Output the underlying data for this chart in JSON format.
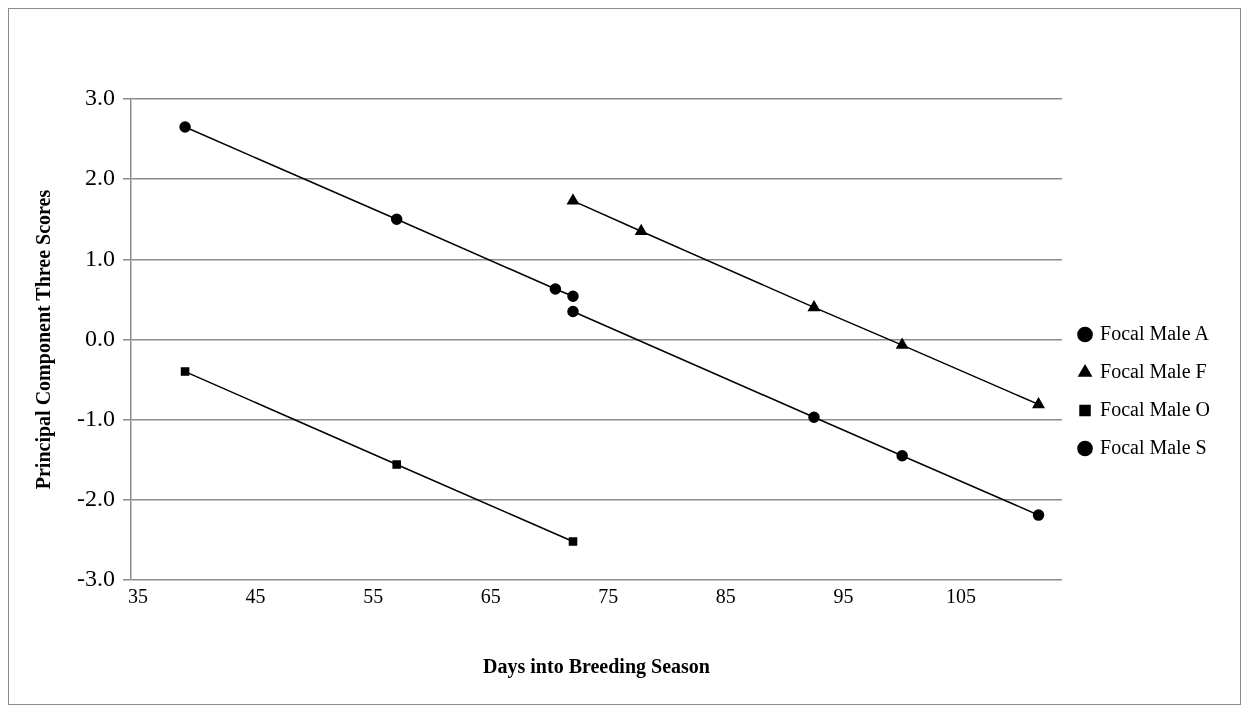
{
  "chart_data": {
    "type": "line",
    "xlabel": "Days into Breeding Season",
    "ylabel": "Principal Component Three Scores",
    "xlim": [
      34.4,
      113.6
    ],
    "xticks": [
      35,
      45,
      55,
      65,
      75,
      85,
      95,
      105
    ],
    "ylim": [
      -3,
      3
    ],
    "yticks": [
      {
        "value": -3,
        "label": "-3.0"
      },
      {
        "value": -2,
        "label": "-2.0"
      },
      {
        "value": -1,
        "label": "-1.0"
      },
      {
        "value": 0,
        "label": "0.0"
      },
      {
        "value": 1,
        "label": "1.0"
      },
      {
        "value": 2,
        "label": "2.0"
      },
      {
        "value": 3,
        "label": "3.0"
      }
    ],
    "grid": "y",
    "legend": "right",
    "line_style": "solid",
    "series": [
      {
        "name": "Focal Male A",
        "color": "#000000",
        "marker": "circle",
        "x": [
          72,
          92.5,
          100,
          111.6
        ],
        "values": [
          0.35,
          -0.97,
          -1.45,
          -2.19
        ]
      },
      {
        "name": "Focal Male F",
        "color": "#000000",
        "marker": "triangle",
        "x": [
          72,
          77.8,
          92.5,
          100,
          111.6
        ],
        "values": [
          1.73,
          1.35,
          0.4,
          -0.07,
          -0.81
        ]
      },
      {
        "name": "Focal Male O",
        "color": "#000000",
        "marker": "square",
        "x": [
          39,
          57,
          72
        ],
        "values": [
          -0.4,
          -1.56,
          -2.52
        ]
      },
      {
        "name": "Focal Male S",
        "color": "#000000",
        "marker": "circle",
        "x": [
          39,
          57,
          70.5,
          72
        ],
        "values": [
          2.65,
          1.5,
          0.63,
          0.54
        ]
      }
    ]
  }
}
